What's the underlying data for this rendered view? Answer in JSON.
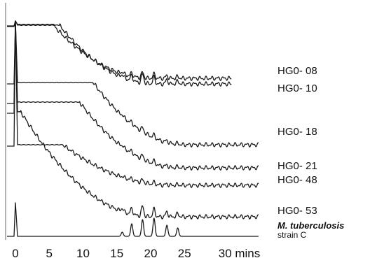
{
  "chart_data": {
    "type": "line",
    "title": "",
    "xlabel": "",
    "ylabel": "",
    "xlim": [
      -1,
      36
    ],
    "x_ticks": [
      0,
      5,
      10,
      15,
      20,
      25,
      30
    ],
    "x_tick_labels": [
      "0",
      "5",
      "10",
      "15",
      "20",
      "25",
      "30 mins"
    ],
    "grid": false,
    "legend": "labels beside traces",
    "series": [
      {
        "name": "HG0- 08",
        "plateau_end": 5.5,
        "tail_end": 32
      },
      {
        "name": "HG0- 10",
        "plateau_end": 6.5,
        "tail_end": 32
      },
      {
        "name": "HG0- 18",
        "plateau_end": 11.5,
        "tail_end": 36
      },
      {
        "name": "HG0- 21",
        "plateau_end": 9.5,
        "tail_end": 36
      },
      {
        "name": "HG0- 48",
        "plateau_end": 7.0,
        "tail_end": 36
      },
      {
        "name": "HG0- 53",
        "plateau_end": 0.8,
        "tail_end": 36
      },
      {
        "name": "M. tuberculosis",
        "subtitle": "strain C",
        "plateau_end": 0.5,
        "tail_end": 36
      }
    ]
  }
}
